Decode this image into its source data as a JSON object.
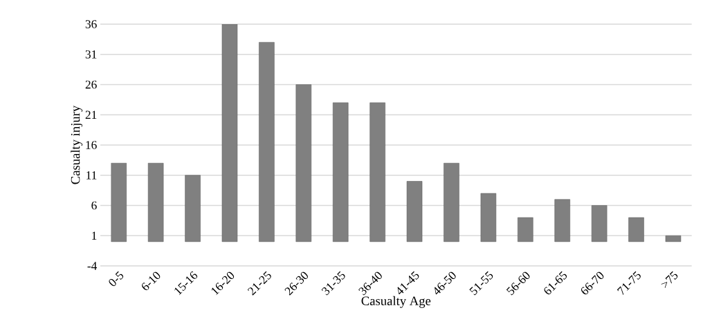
{
  "chart_data": {
    "type": "bar",
    "xlabel": "Casualty Age",
    "ylabel": "Casualty injury",
    "categories": [
      "0-5",
      "6-10",
      "15-16",
      "16-20",
      "21-25",
      "26-30",
      "31-35",
      "36-40",
      "41-45",
      "46-50",
      "51-55",
      "56-60",
      "61-65",
      "66-70",
      "71-75",
      ">75"
    ],
    "values": [
      13,
      13,
      11,
      36,
      33,
      26,
      23,
      23,
      10,
      13,
      8,
      4,
      7,
      6,
      4,
      1
    ],
    "color": "#808080",
    "ylim": [
      -4,
      36
    ],
    "yticks": [
      -4,
      1,
      6,
      11,
      16,
      21,
      26,
      31,
      36
    ],
    "grid": "y"
  }
}
